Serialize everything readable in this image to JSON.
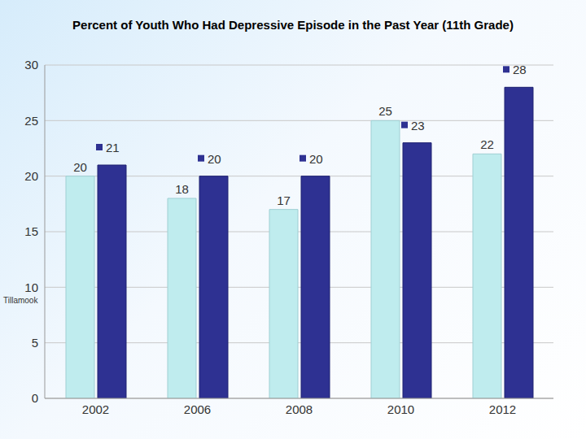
{
  "chart_data": {
    "type": "bar",
    "title": "Percent of Youth Who Had Depressive Episode in the Past Year (11th Grade)",
    "categories": [
      "2002",
      "2006",
      "2008",
      "2010",
      "2012"
    ],
    "series": [
      {
        "name": "Tillamook",
        "color": "#bfecee",
        "values": [
          20,
          18,
          17,
          25,
          22
        ]
      },
      {
        "color": "#2e3192",
        "values": [
          21,
          20,
          20,
          23,
          28
        ]
      }
    ],
    "ylim": [
      0,
      30
    ],
    "yticks": [
      0,
      5,
      10,
      15,
      20,
      25,
      30
    ],
    "grid": true,
    "data_labels": true
  }
}
